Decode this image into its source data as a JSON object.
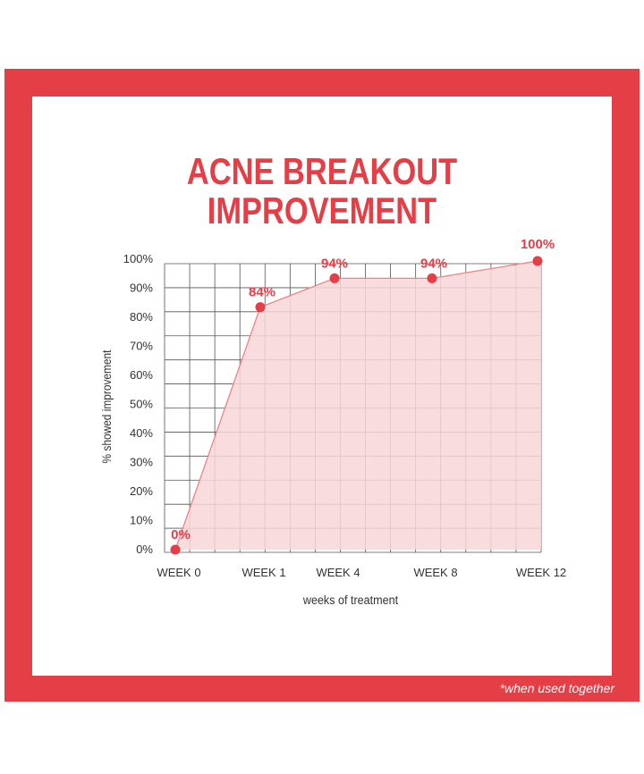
{
  "title_line1": "ACNE BREAKOUT",
  "title_line2": "IMPROVEMENT",
  "footnote": "*when used together",
  "colors": {
    "accent": "#e43e46",
    "fill": "#f8d7d8",
    "line": "#e8858a",
    "grid": "#555555"
  },
  "chart_data": {
    "type": "area",
    "categories": [
      "WEEK 0",
      "WEEK 1",
      "WEEK 4",
      "WEEK 8",
      "WEEK 12"
    ],
    "values": [
      0,
      84,
      94,
      94,
      100
    ],
    "data_labels": [
      "0%",
      "84%",
      "94%",
      "94%",
      "100%"
    ],
    "ylabel": "% showed improvement",
    "xlabel": "weeks of treatment",
    "ylim": [
      0,
      100
    ],
    "yticks": [
      "0%",
      "10%",
      "20%",
      "30%",
      "40%",
      "50%",
      "60%",
      "70%",
      "80%",
      "90%",
      "100%"
    ],
    "grid": true,
    "legend": "none"
  }
}
